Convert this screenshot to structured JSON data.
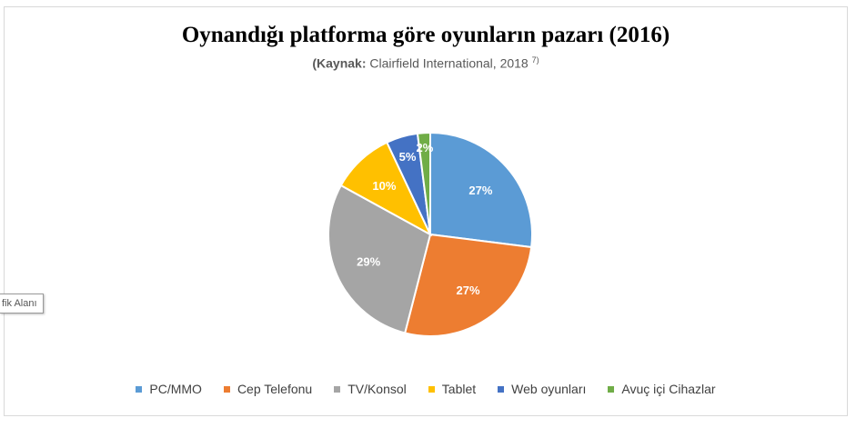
{
  "chart_data": {
    "type": "pie",
    "title": "Oynandığı platforma göre oyunların pazarı (2016)",
    "subtitle": {
      "bold": "(Kaynak:",
      "text": " Clairfield International, 2018 ",
      "superscript": "7)"
    },
    "categories": [
      "PC/MMO",
      "Cep Telefonu",
      "TV/Konsol",
      "Tablet",
      "Web oyunları",
      "Avuç içi Cihazlar"
    ],
    "values": [
      27,
      27,
      29,
      10,
      5,
      2
    ],
    "data_labels": [
      "27%",
      "27%",
      "29%",
      "10%",
      "5%",
      "2%"
    ],
    "colors": [
      "#5b9bd5",
      "#ed7d31",
      "#a5a5a5",
      "#ffc000",
      "#4472c4",
      "#70ad47"
    ],
    "legend_position": "bottom",
    "start_angle": "12 o'clock, clockwise"
  },
  "tooltip": {
    "label": "fik Alanı"
  }
}
